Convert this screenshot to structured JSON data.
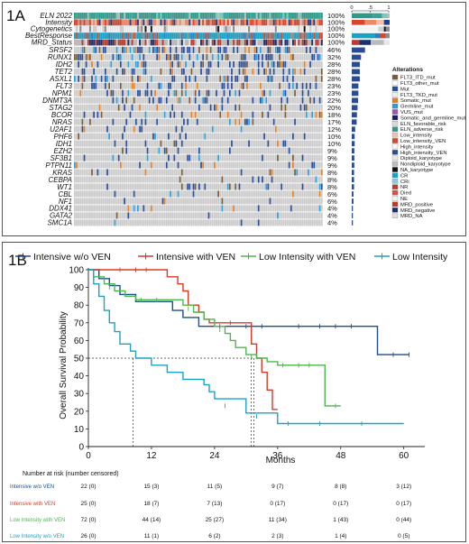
{
  "panel_a": {
    "label": "1A",
    "annotation_rows": [
      {
        "label": "ELN 2022",
        "pct": "100%",
        "palette": [
          "#2f9a8a",
          "#3aa19a",
          "#7ec8b8",
          "#bbbbbb"
        ],
        "weights": [
          0.55,
          0.25,
          0.15,
          0.05
        ]
      },
      {
        "label": "Intensity",
        "pct": "100%",
        "palette": [
          "#d6452c",
          "#e98a6c",
          "#f3c1a6",
          "#1e3f8c"
        ],
        "weights": [
          0.35,
          0.3,
          0.2,
          0.15
        ]
      },
      {
        "label": "Cytogenetics",
        "pct": "100%",
        "palette": [
          "#f4f4f4",
          "#cfcfcf",
          "#111111",
          "#8b8b8b"
        ],
        "weights": [
          0.7,
          0.15,
          0.05,
          0.1
        ]
      },
      {
        "label": "BestResponse",
        "pct": "100%",
        "palette": [
          "#17a2c8",
          "#2f7fb8",
          "#d6452c",
          "#8b8b8b"
        ],
        "weights": [
          0.6,
          0.15,
          0.15,
          0.1
        ]
      },
      {
        "label": "MRD_Status",
        "pct": "100%",
        "palette": [
          "#c0392b",
          "#1a2f6e",
          "#bbbbbb",
          "#e6e6e6"
        ],
        "weights": [
          0.2,
          0.3,
          0.35,
          0.15
        ]
      }
    ],
    "gene_rows": [
      {
        "label": "SRSF2",
        "pct": "46%",
        "fraction": 0.46
      },
      {
        "label": "RUNX1",
        "pct": "32%",
        "fraction": 0.32
      },
      {
        "label": "IDH2",
        "pct": "28%",
        "fraction": 0.28
      },
      {
        "label": "TET2",
        "pct": "28%",
        "fraction": 0.28
      },
      {
        "label": "ASXL1",
        "pct": "28%",
        "fraction": 0.28
      },
      {
        "label": "FLT3",
        "pct": "23%",
        "fraction": 0.23
      },
      {
        "label": "NPM1",
        "pct": "23%",
        "fraction": 0.23
      },
      {
        "label": "DNMT3A",
        "pct": "22%",
        "fraction": 0.22
      },
      {
        "label": "STAG2",
        "pct": "20%",
        "fraction": 0.2
      },
      {
        "label": "BCOR",
        "pct": "18%",
        "fraction": 0.18
      },
      {
        "label": "NRAS",
        "pct": "17%",
        "fraction": 0.17
      },
      {
        "label": "U2AF1",
        "pct": "12%",
        "fraction": 0.12
      },
      {
        "label": "PHF6",
        "pct": "10%",
        "fraction": 0.1
      },
      {
        "label": "IDH1",
        "pct": "10%",
        "fraction": 0.1
      },
      {
        "label": "EZH2",
        "pct": "9%",
        "fraction": 0.09
      },
      {
        "label": "SF3B1",
        "pct": "9%",
        "fraction": 0.09
      },
      {
        "label": "PTPN11",
        "pct": "9%",
        "fraction": 0.09
      },
      {
        "label": "KRAS",
        "pct": "8%",
        "fraction": 0.08
      },
      {
        "label": "CEBPA",
        "pct": "8%",
        "fraction": 0.08
      },
      {
        "label": "WT1",
        "pct": "8%",
        "fraction": 0.08
      },
      {
        "label": "CBL",
        "pct": "6%",
        "fraction": 0.06
      },
      {
        "label": "NF1",
        "pct": "6%",
        "fraction": 0.06
      },
      {
        "label": "DDX41",
        "pct": "4%",
        "fraction": 0.04
      },
      {
        "label": "GATA2",
        "pct": "4%",
        "fraction": 0.04
      },
      {
        "label": "SMC1A",
        "pct": "4%",
        "fraction": 0.04
      }
    ],
    "top_scale_ticks": [
      "0",
      ".5",
      "1"
    ],
    "legend_title": "Alterations",
    "legend_items": [
      {
        "label": "FLT3_ITD_mut",
        "color": "#7a5c3a"
      },
      {
        "label": "FLT3_other_mut",
        "color": "#ffffff"
      },
      {
        "label": "Mut",
        "color": "#2b4d96"
      },
      {
        "label": "FLT3_TKD_mut",
        "color": "#efefef"
      },
      {
        "label": "Somatic_mut",
        "color": "#e67e22"
      },
      {
        "label": "Germline_mut",
        "color": "#2c9fd9"
      },
      {
        "label": "VUS_mut",
        "color": "#9b59b6"
      },
      {
        "label": "Somatic_and_germline_mut",
        "color": "#241a5e"
      },
      {
        "label": "ELN_favorable_risk",
        "color": "#d9d9d9"
      },
      {
        "label": "ELN_adverse_risk",
        "color": "#2f9a8a"
      },
      {
        "label": "Low_intensity",
        "color": "#f3c1a6"
      },
      {
        "label": "Low_intensity_VEN",
        "color": "#d6452c"
      },
      {
        "label": "High_intensity",
        "color": "#f7f7f7"
      },
      {
        "label": "High_intensity_VEN",
        "color": "#2b4d96"
      },
      {
        "label": "Diploid_karyotype",
        "color": "#e8e8e8"
      },
      {
        "label": "Nondiploid_karyotype",
        "color": "#bdbdbd"
      },
      {
        "label": "NA_karyotype",
        "color": "#111111"
      },
      {
        "label": "CR",
        "color": "#17a2c8"
      },
      {
        "label": "CRi",
        "color": "#7fd3e0"
      },
      {
        "label": "NR",
        "color": "#c0392b"
      },
      {
        "label": "Died",
        "color": "#e74c3c"
      },
      {
        "label": "NE",
        "color": "#f2f2f2"
      },
      {
        "label": "MRD_positive",
        "color": "#c0392b"
      },
      {
        "label": "MRD_negative",
        "color": "#1a2f6e"
      },
      {
        "label": "MRD_NA",
        "color": "#dddddd"
      }
    ]
  },
  "panel_b": {
    "label": "1B",
    "risk_table_title": "Number at risk (number censored)",
    "risk_rows": [
      {
        "label": "Intensive w/o VEN",
        "values": [
          "22 (0)",
          "15 (3)",
          "11 (5)",
          "9 (7)",
          "8 (8)",
          "3 (12)"
        ]
      },
      {
        "label": "Intensive with VEN",
        "values": [
          "25 (0)",
          "18 (7)",
          "7 (13)",
          "0 (17)",
          "0 (17)",
          "0 (17)"
        ]
      },
      {
        "label": "Low Intensity with VEN",
        "values": [
          "72 (0)",
          "44 (14)",
          "25 (27)",
          "11 (34)",
          "1 (43)",
          "0 (44)"
        ]
      },
      {
        "label": "Low Intensity w/o VEN",
        "values": [
          "26 (0)",
          "11 (1)",
          "6 (2)",
          "2 (3)",
          "1 (4)",
          "0 (5)"
        ]
      }
    ]
  },
  "chart_data": {
    "type": "line",
    "xlabel": "Months",
    "ylabel": "Overall Survival Probability",
    "xlim": [
      0,
      64
    ],
    "ylim": [
      0,
      100
    ],
    "x_ticks": [
      0,
      12,
      24,
      36,
      48,
      60
    ],
    "y_ticks": [
      0,
      10,
      20,
      30,
      40,
      50,
      60,
      70,
      80,
      90,
      100
    ],
    "grid": false,
    "legend_position": "top",
    "median_line_y": 50,
    "median_x": [
      8.5,
      31,
      31.5
    ],
    "series": [
      {
        "name": "Intensive w/o VEN",
        "color": "#1f4e8c",
        "points": [
          [
            0,
            100
          ],
          [
            2,
            95
          ],
          [
            4,
            91
          ],
          [
            6,
            86
          ],
          [
            9,
            82
          ],
          [
            16,
            77
          ],
          [
            18,
            73
          ],
          [
            21,
            68
          ],
          [
            53,
            68
          ],
          [
            55,
            52
          ],
          [
            61,
            52
          ]
        ],
        "censored": [
          [
            25,
            68
          ],
          [
            30,
            68
          ],
          [
            33,
            68
          ],
          [
            40,
            68
          ],
          [
            44,
            68
          ],
          [
            47,
            68
          ],
          [
            50,
            68
          ],
          [
            58,
            52
          ],
          [
            61,
            52
          ]
        ]
      },
      {
        "name": "Intensive with VEN",
        "color": "#d93a25",
        "points": [
          [
            0,
            100
          ],
          [
            14,
            100
          ],
          [
            15,
            96
          ],
          [
            17,
            92
          ],
          [
            18,
            88
          ],
          [
            19,
            80
          ],
          [
            21,
            76
          ],
          [
            22,
            72
          ],
          [
            23,
            70
          ],
          [
            30,
            70
          ],
          [
            31,
            58
          ],
          [
            32,
            50
          ],
          [
            33,
            42
          ],
          [
            34,
            32
          ],
          [
            35,
            21
          ],
          [
            36,
            21
          ]
        ],
        "censored": [
          [
            6,
            100
          ],
          [
            9,
            100
          ],
          [
            11,
            100
          ],
          [
            24,
            70
          ],
          [
            27,
            70
          ]
        ]
      },
      {
        "name": "Low Intensity with VEN",
        "color": "#4cb84c",
        "points": [
          [
            0,
            100
          ],
          [
            1,
            96
          ],
          [
            3,
            92
          ],
          [
            5,
            88
          ],
          [
            7,
            85
          ],
          [
            9,
            83
          ],
          [
            16,
            83
          ],
          [
            18,
            80
          ],
          [
            20,
            76
          ],
          [
            22,
            72
          ],
          [
            24,
            68
          ],
          [
            26,
            64
          ],
          [
            27,
            60
          ],
          [
            28,
            56
          ],
          [
            30,
            52
          ],
          [
            32,
            50
          ],
          [
            34,
            48
          ],
          [
            36,
            46
          ],
          [
            44,
            46
          ],
          [
            45,
            23
          ],
          [
            48,
            23
          ]
        ],
        "censored": [
          [
            4,
            90
          ],
          [
            10,
            83
          ],
          [
            13,
            83
          ],
          [
            19,
            78
          ],
          [
            25,
            66
          ],
          [
            31,
            51
          ],
          [
            37,
            46
          ],
          [
            40,
            46
          ],
          [
            42,
            46
          ],
          [
            47,
            23
          ]
        ]
      },
      {
        "name": "Low Intensity",
        "color": "#1ba3c6",
        "points": [
          [
            0,
            100
          ],
          [
            1,
            92
          ],
          [
            2,
            85
          ],
          [
            3,
            77
          ],
          [
            4,
            70
          ],
          [
            5,
            65
          ],
          [
            6,
            58
          ],
          [
            8,
            54
          ],
          [
            9,
            50
          ],
          [
            12,
            46
          ],
          [
            15,
            42
          ],
          [
            18,
            38
          ],
          [
            22,
            35
          ],
          [
            23,
            31
          ],
          [
            24,
            27
          ],
          [
            30,
            19
          ],
          [
            36,
            13
          ],
          [
            60,
            13
          ]
        ],
        "censored": [
          [
            26,
            23
          ],
          [
            32,
            17
          ],
          [
            38,
            13
          ],
          [
            44,
            13
          ],
          [
            52,
            13
          ]
        ]
      }
    ]
  }
}
